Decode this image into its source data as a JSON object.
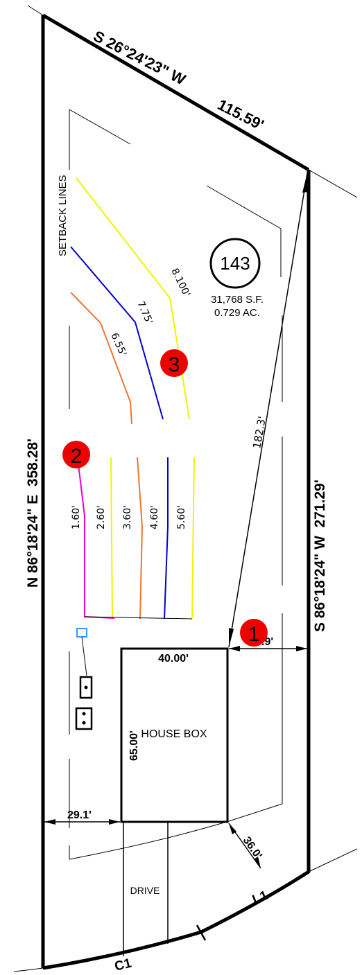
{
  "lot": {
    "number": "143",
    "area_sf": "31,768 S.F.",
    "area_ac": "0.729 AC."
  },
  "bearings": {
    "top": {
      "bearing": "S 26°24'23\" W",
      "distance": "115.59'"
    },
    "left": "N 86°18'24\" E  358.28'",
    "right": "S 86°18'24\" W  271.29'"
  },
  "labels": {
    "setback": "SETBACK LINES",
    "house": "HOUSE BOX",
    "drive": "DRIVE",
    "curve": "C1",
    "line": "L1"
  },
  "dimensions": {
    "house_width": "40.00'",
    "house_depth": "65.00'",
    "right_offset": ".9'",
    "left_offset": "29.1'",
    "corner_offset": "36.0'",
    "diagonal": "182.3'"
  },
  "contours_upper": [
    {
      "label": "8.100'",
      "color": "#f2f200"
    },
    {
      "label": "7.75'",
      "color": "#0000cc"
    },
    {
      "label": "6.55'",
      "color": "#ee7733"
    }
  ],
  "contours_lower": [
    {
      "label": "1.60'",
      "color": "#ee00cc"
    },
    {
      "label": "2.60'",
      "color": "#f2f200"
    },
    {
      "label": "3.60'",
      "color": "#ee7733"
    },
    {
      "label": "4.60'",
      "color": "#0000cc"
    },
    {
      "label": "5.60'",
      "color": "#f2f200"
    }
  ],
  "markers": [
    {
      "label": "1",
      "color": "#ee0000"
    },
    {
      "label": "2",
      "color": "#ee0000"
    },
    {
      "label": "3",
      "color": "#ee0000"
    }
  ]
}
